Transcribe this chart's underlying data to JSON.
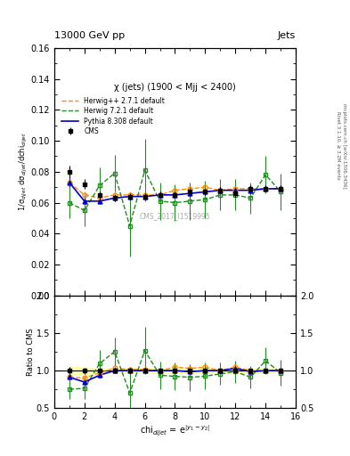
{
  "title_top": "13000 GeV pp",
  "title_right": "Jets",
  "panel_title": "χ (jets) (1900 < Mjj < 2400)",
  "watermark": "CMS_2017_I1519995",
  "ylabel_main": "1/σ$_{dijet}$ dσ$_{dijet}$/dchi$_{dijet}$",
  "ylabel_ratio": "Ratio to CMS",
  "xlabel": "chi$_{dijet}$ = e$^{|y_1-y_2|}$",
  "right_label_top": "Rivet 3.1.10, ≥ 3.2M events",
  "right_label_bot": "mcplots.cern.ch [arXiv:1306.3436]",
  "xlim": [
    0,
    16
  ],
  "ylim_main": [
    0,
    0.16
  ],
  "ylim_ratio": [
    0.5,
    2.0
  ],
  "yticks_main": [
    0,
    0.02,
    0.04,
    0.06,
    0.08,
    0.1,
    0.12,
    0.14,
    0.16
  ],
  "yticks_ratio": [
    0.5,
    1.0,
    1.5,
    2.0
  ],
  "cms_x": [
    1,
    2,
    3,
    4,
    5,
    6,
    7,
    8,
    9,
    10,
    11,
    12,
    13,
    14,
    15
  ],
  "cms_y": [
    0.08,
    0.072,
    0.065,
    0.063,
    0.064,
    0.064,
    0.065,
    0.065,
    0.067,
    0.067,
    0.068,
    0.066,
    0.069,
    0.069,
    0.069
  ],
  "cms_yerr": [
    0.004,
    0.003,
    0.002,
    0.002,
    0.002,
    0.002,
    0.002,
    0.002,
    0.002,
    0.002,
    0.002,
    0.002,
    0.002,
    0.002,
    0.002
  ],
  "herwig_pp_x": [
    1,
    2,
    3,
    4,
    5,
    6,
    7,
    8,
    9,
    10,
    11,
    12,
    13,
    14,
    15
  ],
  "herwig_pp_y": [
    0.073,
    0.065,
    0.063,
    0.065,
    0.065,
    0.065,
    0.065,
    0.068,
    0.069,
    0.07,
    0.068,
    0.069,
    0.069,
    0.069,
    0.069
  ],
  "herwig_pp_yerr": [
    0.003,
    0.002,
    0.002,
    0.002,
    0.002,
    0.002,
    0.002,
    0.002,
    0.002,
    0.002,
    0.002,
    0.002,
    0.002,
    0.002,
    0.002
  ],
  "herwig72_x": [
    1,
    2,
    3,
    4,
    5,
    6,
    7,
    8,
    9,
    10,
    11,
    12,
    13,
    14,
    15
  ],
  "herwig72_y": [
    0.06,
    0.055,
    0.071,
    0.079,
    0.045,
    0.081,
    0.061,
    0.06,
    0.061,
    0.062,
    0.065,
    0.065,
    0.063,
    0.078,
    0.067
  ],
  "herwig72_yerr": [
    0.01,
    0.01,
    0.012,
    0.012,
    0.02,
    0.02,
    0.012,
    0.012,
    0.012,
    0.012,
    0.01,
    0.01,
    0.01,
    0.012,
    0.012
  ],
  "pythia_x": [
    1,
    2,
    3,
    4,
    5,
    6,
    7,
    8,
    9,
    10,
    11,
    12,
    13,
    14,
    15
  ],
  "pythia_y": [
    0.073,
    0.061,
    0.061,
    0.063,
    0.064,
    0.064,
    0.065,
    0.065,
    0.066,
    0.067,
    0.068,
    0.068,
    0.068,
    0.069,
    0.069
  ],
  "pythia_yerr": [
    0.003,
    0.002,
    0.002,
    0.002,
    0.002,
    0.002,
    0.002,
    0.002,
    0.002,
    0.002,
    0.002,
    0.002,
    0.002,
    0.002,
    0.002
  ],
  "cms_color": "#000000",
  "herwig_pp_color": "#FF8C00",
  "herwig72_color": "#228B22",
  "pythia_color": "#0000CD",
  "cms_band_color": "#FFFF99",
  "cms_band_alpha": 0.8
}
